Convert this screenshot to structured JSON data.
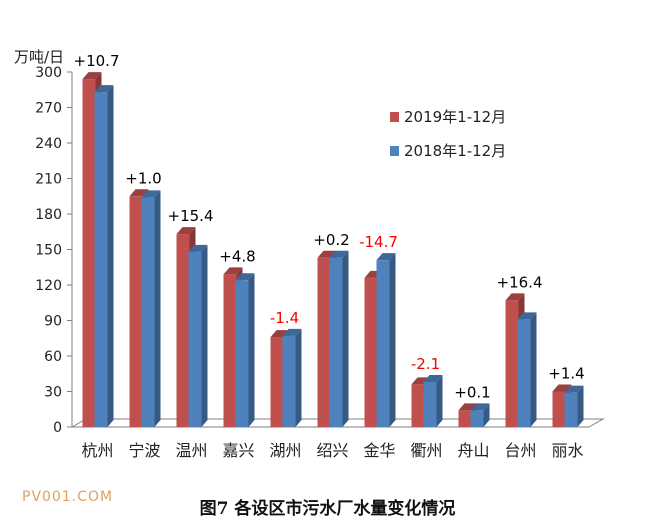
{
  "chart_data": {
    "type": "bar",
    "ylabel": "万吨/日",
    "ylim": [
      0,
      300
    ],
    "yticks": [
      0,
      30,
      60,
      90,
      120,
      150,
      180,
      210,
      240,
      270,
      300
    ],
    "categories": [
      "杭州",
      "宁波",
      "温州",
      "嘉兴",
      "湖州",
      "绍兴",
      "金华",
      "衢州",
      "舟山",
      "台州",
      "丽水"
    ],
    "series": [
      {
        "name": "2019年1-12月",
        "color": "#c0504d",
        "values": [
          294,
          195,
          163,
          129,
          76,
          143,
          126,
          36,
          14,
          107,
          30
        ]
      },
      {
        "name": "2018年1-12月",
        "color": "#4f81bd",
        "values": [
          283,
          194,
          148,
          124,
          77,
          143,
          141,
          38,
          14,
          91,
          29
        ]
      }
    ],
    "annotations": [
      "+10.7",
      "+1.0",
      "+15.4",
      "+4.8",
      "-1.4",
      "+0.2",
      "-14.7",
      "-2.1",
      "+0.1",
      "+16.4",
      "+1.4"
    ],
    "annotation_colors": [
      "#000000",
      "#000000",
      "#000000",
      "#000000",
      "#ff0000",
      "#000000",
      "#ff0000",
      "#ff0000",
      "#000000",
      "#000000",
      "#000000"
    ],
    "legend_position": "top-right",
    "grid": false
  },
  "caption": "图7   各设区市污水厂水量变化情况",
  "watermark": "PV001.COM"
}
